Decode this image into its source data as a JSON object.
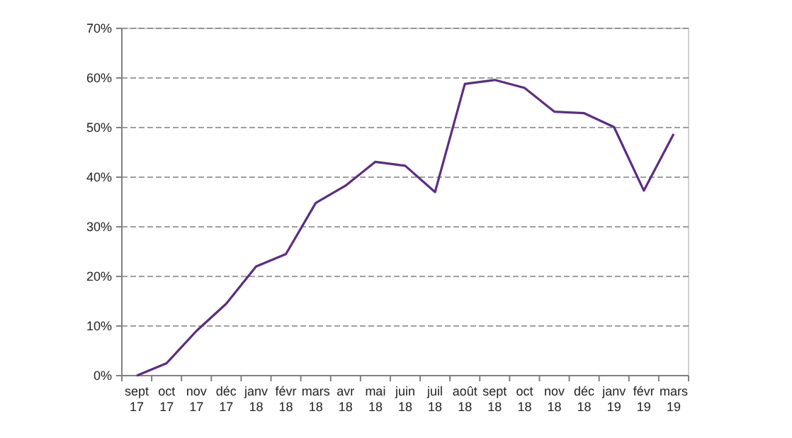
{
  "chart_data": {
    "type": "line",
    "categories": [
      "sept 17",
      "oct 17",
      "nov 17",
      "déc 17",
      "janv 18",
      "févr 18",
      "mars 18",
      "avr 18",
      "mai 18",
      "juin 18",
      "juil 18",
      "août 18",
      "sept 18",
      "oct 18",
      "nov 18",
      "déc 18",
      "janv 19",
      "févr 19",
      "mars 19"
    ],
    "series": [
      {
        "color": "#5b2d82",
        "values": [
          0,
          2.5,
          9,
          14.5,
          22,
          24.5,
          34.8,
          38.3,
          43.1,
          42.3,
          37,
          58.8,
          59.6,
          58,
          53.2,
          52.9,
          50.1,
          37.3,
          48.7
        ]
      }
    ],
    "ylim": [
      0,
      70
    ],
    "yticks": [
      {
        "value": 0,
        "label": "0%"
      },
      {
        "value": 10,
        "label": "10%"
      },
      {
        "value": 20,
        "label": "20%"
      },
      {
        "value": 30,
        "label": "30%"
      },
      {
        "value": 40,
        "label": "40%"
      },
      {
        "value": 50,
        "label": "50%"
      },
      {
        "value": 60,
        "label": "60%"
      },
      {
        "value": 70,
        "label": "70%"
      }
    ],
    "grid": "y",
    "line_style": "solid"
  }
}
